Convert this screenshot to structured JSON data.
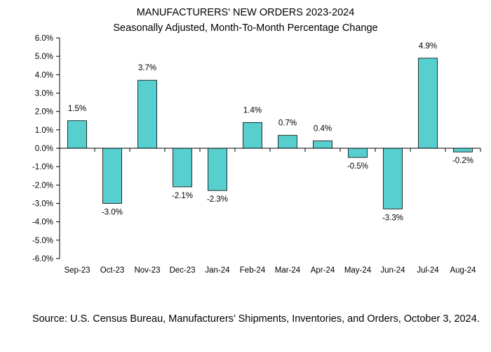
{
  "title": "MANUFACTURERS' NEW ORDERS 2023-2024",
  "subtitle": "Seasonally Adjusted,  Month-To-Month Percentage Change",
  "source": "Source: U.S. Census Bureau, Manufacturers’ Shipments, Inventories, and Orders, October 3, 2024.",
  "colors": {
    "bar": "#57CFCF",
    "bar_stroke": "#000000",
    "axis": "#000000"
  },
  "chart_data": {
    "type": "bar",
    "title": "MANUFACTURERS' NEW ORDERS 2023-2024",
    "subtitle": "Seasonally Adjusted,  Month-To-Month Percentage Change",
    "xlabel": "",
    "ylabel": "",
    "ylim": [
      -6.0,
      6.0
    ],
    "ytick_step": 1.0,
    "yticks": [
      "6.0%",
      "5.0%",
      "4.0%",
      "3.0%",
      "2.0%",
      "1.0%",
      "0.0%",
      "-1.0%",
      "-2.0%",
      "-3.0%",
      "-4.0%",
      "-5.0%",
      "-6.0%"
    ],
    "grid": false,
    "categories": [
      "Sep-23",
      "Oct-23",
      "Nov-23",
      "Dec-23",
      "Jan-24",
      "Feb-24",
      "Mar-24",
      "Apr-24",
      "May-24",
      "Jun-24",
      "Jul-24",
      "Aug-24"
    ],
    "values": [
      1.5,
      -3.0,
      3.7,
      -2.1,
      -2.3,
      1.4,
      0.7,
      0.4,
      -0.5,
      -3.3,
      4.9,
      -0.2
    ],
    "data_labels": [
      "1.5%",
      "-3.0%",
      "3.7%",
      "-2.1%",
      "-2.3%",
      "1.4%",
      "0.7%",
      "0.4%",
      "-0.5%",
      "-3.3%",
      "4.9%",
      "-0.2%"
    ]
  }
}
